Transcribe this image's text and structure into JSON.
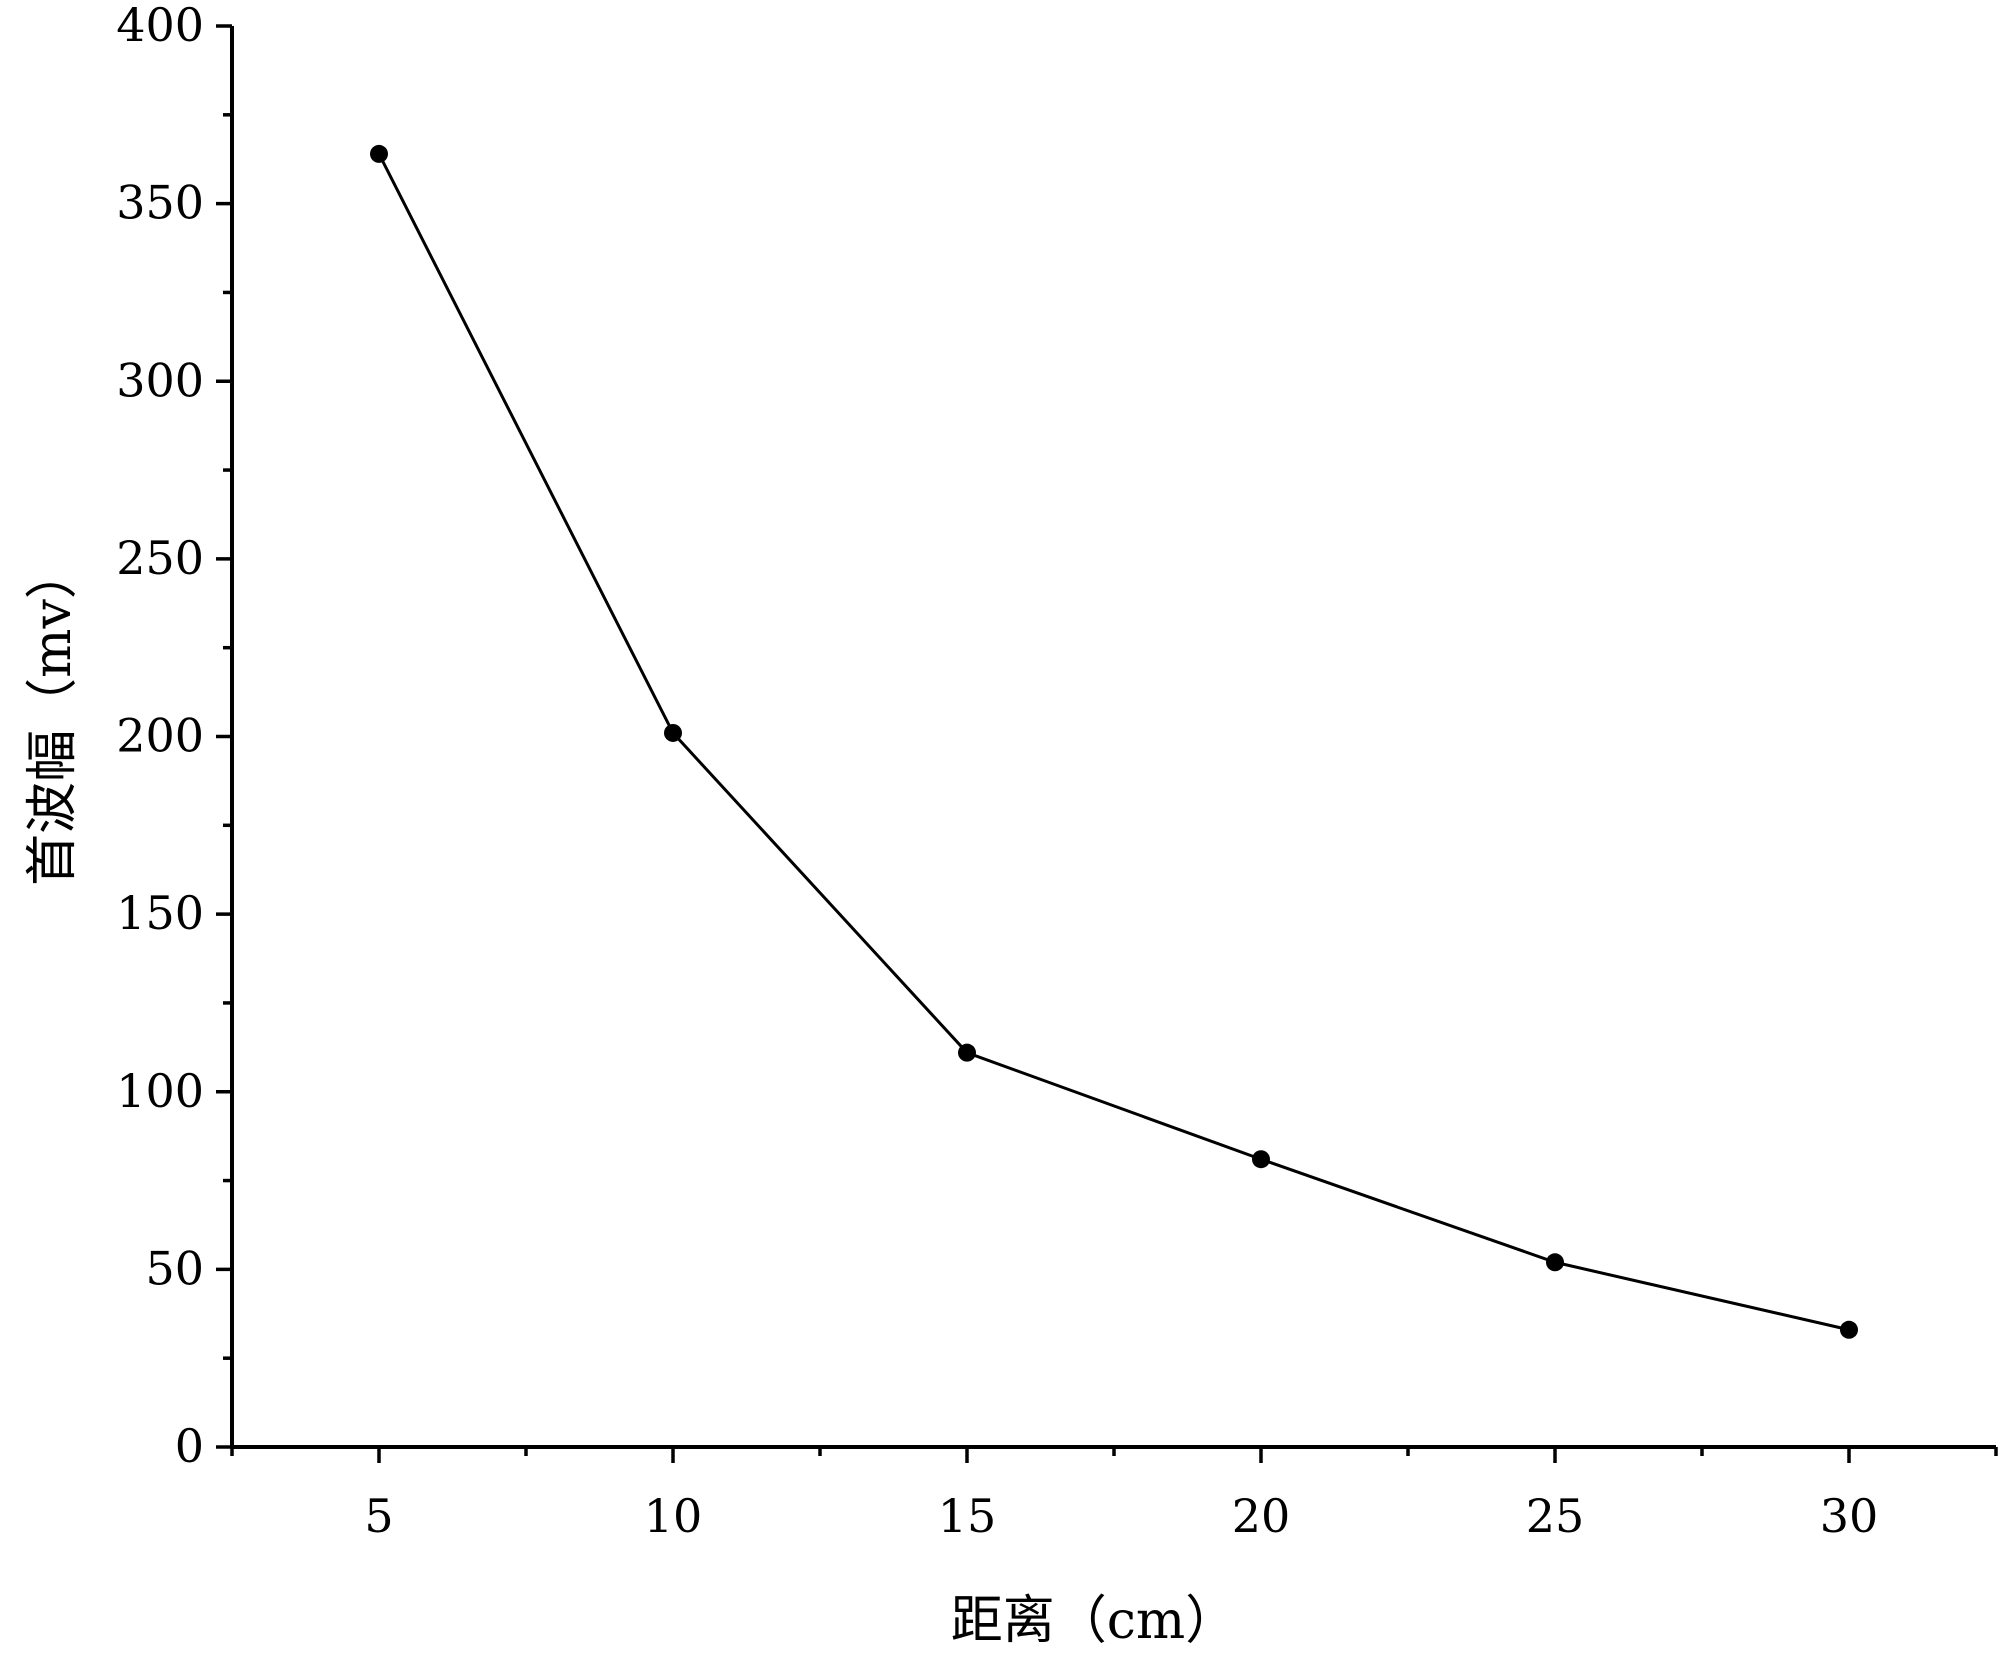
{
  "chart_data": {
    "type": "line",
    "title": "",
    "xlabel": "距离（cm）",
    "ylabel": "首波幅（mv）",
    "x": [
      5,
      10,
      15,
      20,
      25,
      30
    ],
    "series": [
      {
        "values": [
          364,
          201,
          111,
          81,
          52,
          33
        ]
      }
    ],
    "xlim": [
      2.5,
      32.5
    ],
    "ylim": [
      0,
      400
    ],
    "xticks": [
      5,
      10,
      15,
      20,
      25,
      30
    ],
    "yticks": [
      0,
      50,
      100,
      150,
      200,
      250,
      300,
      350,
      400
    ],
    "grid": false,
    "marker": "circle",
    "colors": {
      "line": "#000000",
      "marker": "#000000",
      "axes": "#000000"
    }
  }
}
